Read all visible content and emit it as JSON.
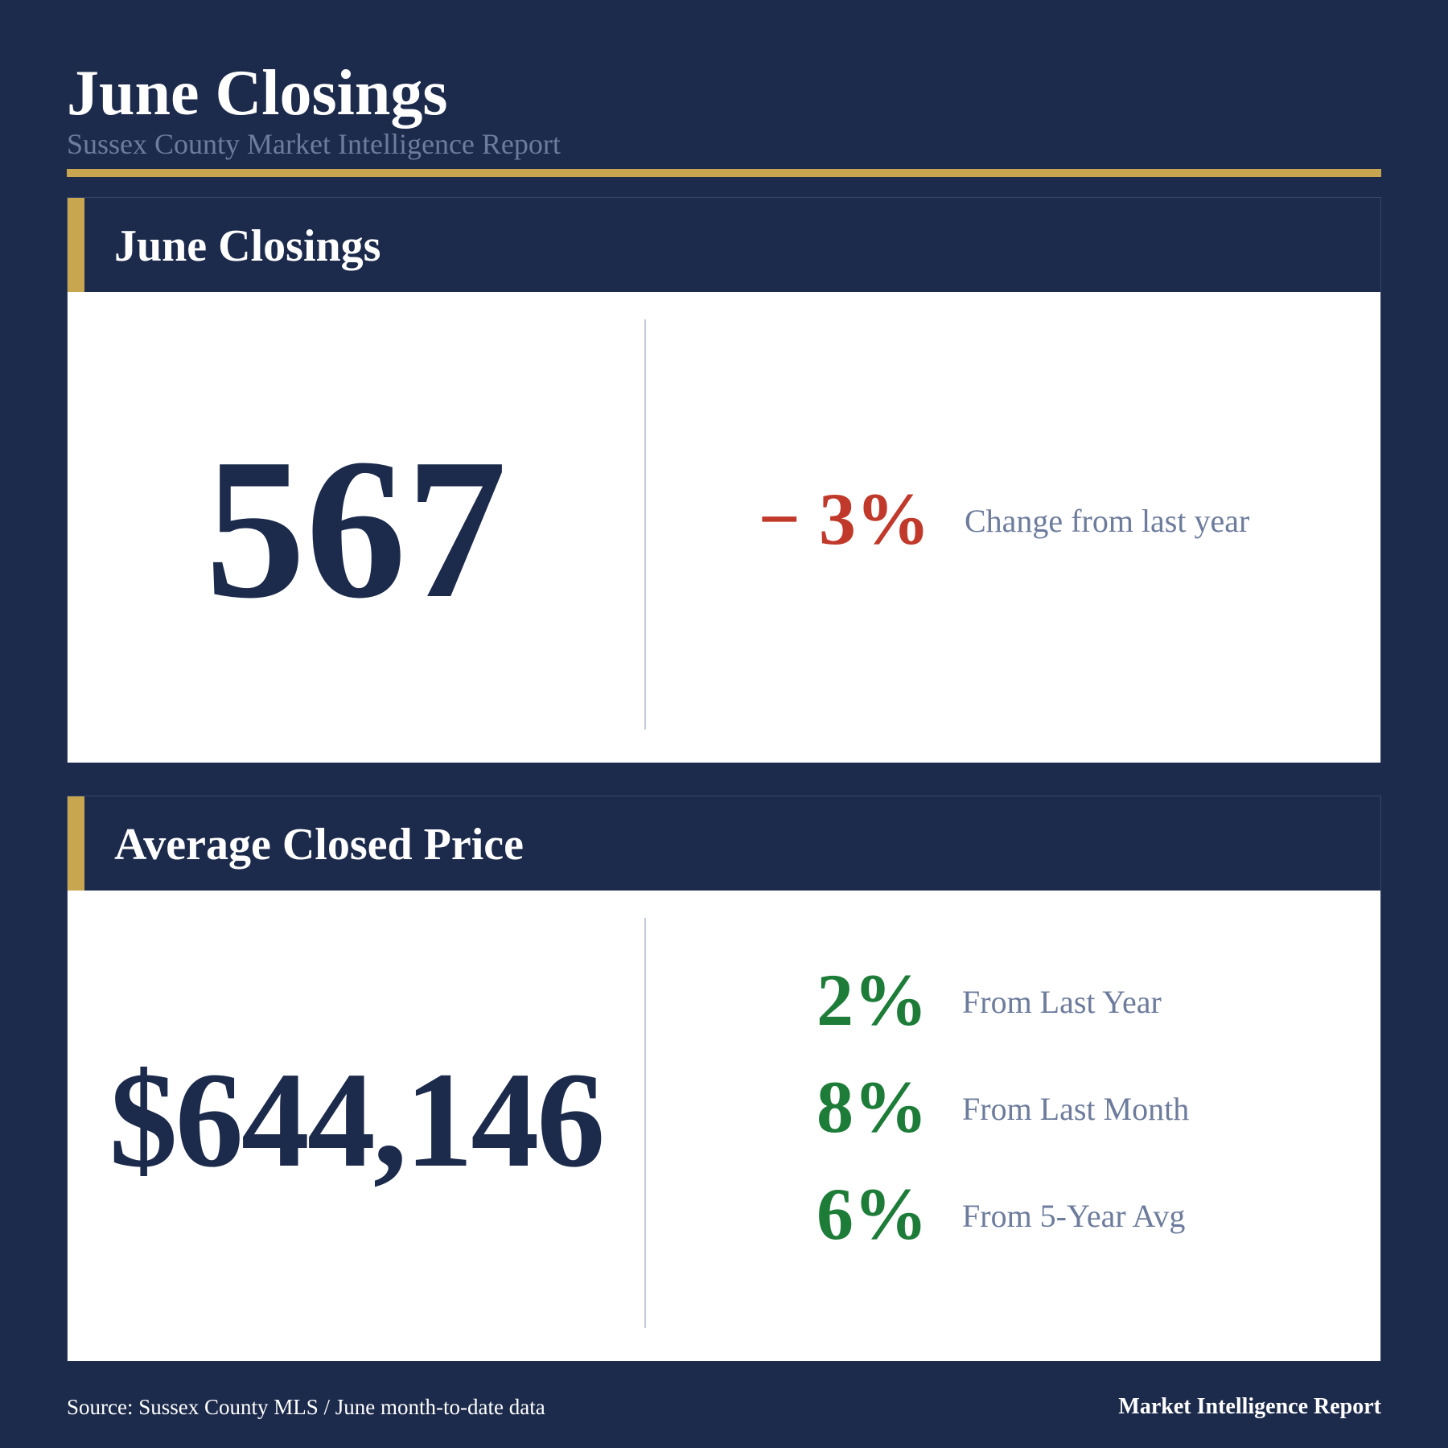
{
  "header": {
    "title": "June Closings",
    "subtitle": "Sussex County Market Intelligence Report"
  },
  "closings_card": {
    "title": "June Closings",
    "value": "567",
    "change": {
      "value": "− 3%",
      "label": "Change from last year",
      "color": "#c0392b"
    }
  },
  "price_card": {
    "title": "Average Closed Price",
    "value": "$644,146",
    "changes": [
      {
        "value": "2%",
        "label": "From Last Year",
        "color": "#1e7c39"
      },
      {
        "value": "8%",
        "label": "From Last Month",
        "color": "#1e7c39"
      },
      {
        "value": "6%",
        "label": "From 5-Year Avg",
        "color": "#1e7c39"
      }
    ]
  },
  "footer": {
    "source": "Source: Sussex County MLS / June month-to-date data",
    "brand": "Market Intelligence Report"
  },
  "colors": {
    "background": "#1c2a4b",
    "accent": "#c8a64f",
    "muted_text": "#6d7c9c",
    "negative": "#c0392b",
    "positive": "#1e7c39"
  }
}
